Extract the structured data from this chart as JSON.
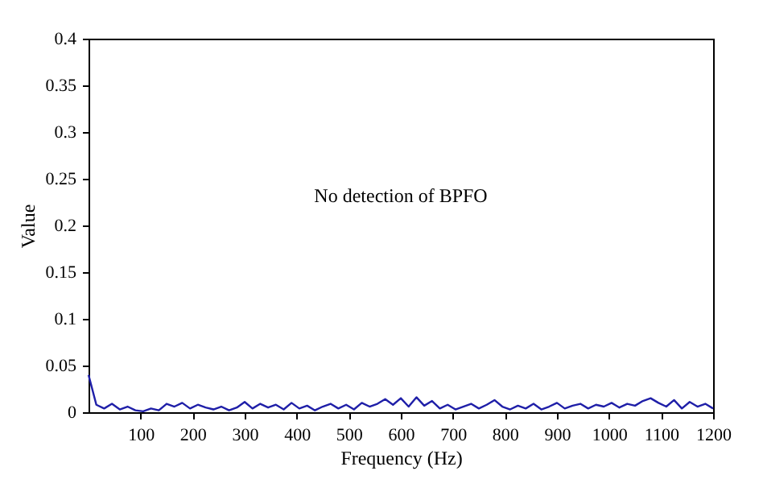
{
  "chart_data": {
    "type": "line",
    "xlabel": "Frequency (Hz)",
    "ylabel": "Value",
    "annotations": [
      "No detection of BPFO"
    ],
    "x": [
      0,
      15,
      30,
      45,
      60,
      75,
      90,
      105,
      120,
      135,
      150,
      165,
      180,
      195,
      210,
      225,
      240,
      255,
      270,
      285,
      300,
      315,
      330,
      345,
      360,
      375,
      390,
      405,
      420,
      435,
      450,
      465,
      480,
      495,
      510,
      525,
      540,
      555,
      570,
      585,
      600,
      615,
      630,
      645,
      660,
      675,
      690,
      705,
      720,
      735,
      750,
      765,
      780,
      795,
      810,
      825,
      840,
      855,
      870,
      885,
      900,
      915,
      930,
      945,
      960,
      975,
      990,
      1005,
      1020,
      1035,
      1050,
      1065,
      1080,
      1095,
      1110,
      1125,
      1140,
      1155,
      1170,
      1185,
      1200
    ],
    "series": [
      {
        "color": "#1f1fa8",
        "values": [
          0.04,
          0.008,
          0.004,
          0.009,
          0.003,
          0.006,
          0.002,
          0.001,
          0.004,
          0.002,
          0.009,
          0.006,
          0.01,
          0.004,
          0.008,
          0.005,
          0.003,
          0.006,
          0.002,
          0.005,
          0.011,
          0.004,
          0.009,
          0.005,
          0.008,
          0.003,
          0.01,
          0.004,
          0.007,
          0.002,
          0.006,
          0.009,
          0.004,
          0.008,
          0.003,
          0.01,
          0.006,
          0.009,
          0.014,
          0.008,
          0.015,
          0.006,
          0.016,
          0.007,
          0.012,
          0.004,
          0.008,
          0.003,
          0.006,
          0.009,
          0.004,
          0.008,
          0.013,
          0.006,
          0.003,
          0.007,
          0.004,
          0.009,
          0.003,
          0.006,
          0.01,
          0.004,
          0.007,
          0.009,
          0.004,
          0.008,
          0.006,
          0.01,
          0.005,
          0.009,
          0.007,
          0.012,
          0.015,
          0.01,
          0.006,
          0.013,
          0.004,
          0.011,
          0.006,
          0.009,
          0.004
        ]
      }
    ],
    "xlim": [
      0,
      1200
    ],
    "xticks": [
      100,
      200,
      300,
      400,
      500,
      600,
      700,
      800,
      900,
      1000,
      1100,
      1200
    ],
    "ylim": [
      0,
      0.4
    ],
    "yticks": [
      0,
      0.05,
      0.1,
      0.15,
      0.2,
      0.25,
      0.3,
      0.35,
      0.4
    ],
    "grid": false
  }
}
